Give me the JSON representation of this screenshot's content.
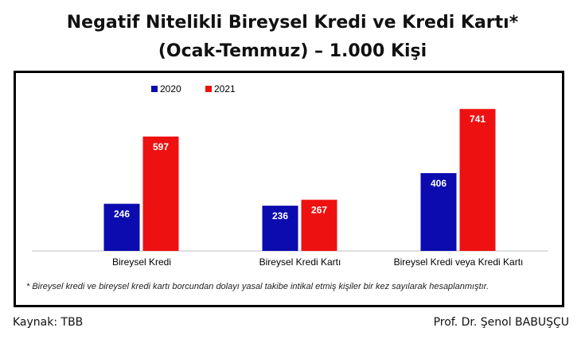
{
  "header": {
    "title_line1": "Negatif Nitelikli Bireysel Kredi ve Kredi Kartı*",
    "title_line2": "(Ocak-Temmuz) – 1.000 Kişi"
  },
  "footnote": "* Bireysel kredi ve bireysel kredi kartı borcundan dolayı yasal takibe intikal etmiş kişiler bir kez sayılarak hesaplanmıştır.",
  "footer": {
    "source": "Kaynak: TBB",
    "author": "Prof. Dr. Şenol BABUŞÇU"
  },
  "colors": {
    "series_2020": "#0b0bb0",
    "series_2021": "#ee1111"
  },
  "chart_data": {
    "type": "bar",
    "title": "Negatif Nitelikli Bireysel Kredi ve Kredi Kartı* (Ocak-Temmuz) – 1.000 Kişi",
    "categories": [
      "Bireysel Kredi",
      "Bireysel Kredi Kartı",
      "Bireysel Kredi veya Kredi Kartı"
    ],
    "series": [
      {
        "name": "2020",
        "values": [
          246,
          236,
          406
        ]
      },
      {
        "name": "2021",
        "values": [
          597,
          267,
          741
        ]
      }
    ],
    "ylim": [
      0,
      800
    ],
    "grid": false,
    "legend": "top-left",
    "data_labels": true
  }
}
